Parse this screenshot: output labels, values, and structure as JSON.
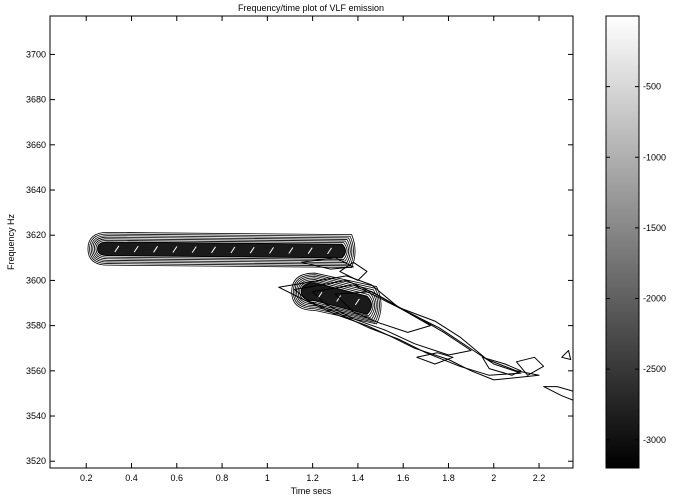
{
  "chart_data": {
    "type": "contour",
    "title": "Frequency/time plot of VLF emission",
    "xlabel": "Time secs",
    "ylabel": "Frequency Hz",
    "xlim": [
      0.04,
      2.35
    ],
    "ylim": [
      3517,
      3717
    ],
    "x_ticks": [
      0.2,
      0.4,
      0.6,
      0.8,
      1,
      1.2,
      1.4,
      1.6,
      1.8,
      2,
      2.2
    ],
    "y_ticks": [
      3520,
      3540,
      3560,
      3580,
      3600,
      3620,
      3640,
      3660,
      3680,
      3700
    ],
    "x_tick_labels": [
      "0.2",
      "0.4",
      "0.6",
      "0.8",
      "1",
      "1.2",
      "1.4",
      "1.6",
      "1.8",
      "2",
      "2.2"
    ],
    "y_tick_labels": [
      "3520",
      "3540",
      "3560",
      "3580",
      "3600",
      "3620",
      "3640",
      "3660",
      "3680",
      "3700"
    ],
    "grid": false,
    "colorbar": {
      "colormap": "gray",
      "range": [
        -3200,
        0
      ],
      "ticks": [
        -500,
        -1000,
        -1500,
        -2000,
        -2500,
        -3000
      ],
      "tick_labels": [
        "-500",
        "-1000",
        "-1500",
        "-2000",
        "-2500",
        "-3000"
      ]
    },
    "features": [
      {
        "name": "upper-emission-band",
        "kind": "dense-band",
        "x": [
          0.25,
          1.36
        ],
        "y_start": 3614,
        "y_end": 3613,
        "half_width_hz": 3,
        "levels": 6
      },
      {
        "name": "lower-emission-band",
        "kind": "dense-band",
        "x": [
          1.15,
          1.48
        ],
        "y_start": 3595,
        "y_end": 3589,
        "half_width_hz": 4,
        "levels": 6
      },
      {
        "name": "descending-emission-tail",
        "kind": "contour-lines",
        "polygons": [
          [
            [
              1.05,
              3597
            ],
            [
              1.35,
              3602
            ],
            [
              1.46,
              3598
            ],
            [
              1.58,
              3588
            ],
            [
              1.74,
              3582
            ],
            [
              1.85,
              3575
            ],
            [
              1.97,
              3565
            ],
            [
              2.1,
              3560
            ],
            [
              2.2,
              3558
            ],
            [
              2.0,
              3556
            ],
            [
              1.9,
              3560
            ],
            [
              1.8,
              3565
            ],
            [
              1.65,
              3570
            ],
            [
              1.55,
              3575
            ],
            [
              1.44,
              3580
            ],
            [
              1.3,
              3585
            ],
            [
              1.15,
              3592
            ]
          ],
          [
            [
              1.12,
              3596
            ],
            [
              1.35,
              3600
            ],
            [
              1.48,
              3594
            ],
            [
              1.62,
              3586
            ],
            [
              1.76,
              3579
            ],
            [
              1.88,
              3571
            ],
            [
              2.0,
              3563
            ],
            [
              2.12,
              3559
            ],
            [
              1.98,
              3558
            ],
            [
              1.85,
              3562
            ],
            [
              1.7,
              3568
            ],
            [
              1.58,
              3574
            ],
            [
              1.45,
              3579
            ],
            [
              1.3,
              3586
            ],
            [
              1.18,
              3591
            ]
          ],
          [
            [
              1.2,
              3595
            ],
            [
              1.38,
              3598
            ],
            [
              1.52,
              3591
            ],
            [
              1.66,
              3584
            ],
            [
              1.78,
              3577
            ],
            [
              1.9,
              3569
            ],
            [
              1.8,
              3567
            ],
            [
              1.65,
              3572
            ],
            [
              1.52,
              3578
            ],
            [
              1.38,
              3583
            ],
            [
              1.25,
              3590
            ]
          ],
          [
            [
              1.3,
              3594
            ],
            [
              1.46,
              3595
            ],
            [
              1.58,
              3588
            ],
            [
              1.72,
              3580
            ],
            [
              1.62,
              3577
            ],
            [
              1.5,
              3581
            ],
            [
              1.38,
              3586
            ]
          ],
          [
            [
              1.32,
              3604
            ],
            [
              1.38,
              3608
            ],
            [
              1.44,
              3604
            ],
            [
              1.4,
              3600
            ]
          ],
          [
            [
              1.15,
              3608
            ],
            [
              1.3,
              3610
            ],
            [
              1.38,
              3606
            ],
            [
              1.28,
              3605
            ]
          ],
          [
            [
              1.95,
              3566
            ],
            [
              2.05,
              3563
            ],
            [
              2.12,
              3560
            ],
            [
              2.08,
              3558
            ],
            [
              1.98,
              3561
            ]
          ],
          [
            [
              2.1,
              3564
            ],
            [
              2.18,
              3566
            ],
            [
              2.22,
              3562
            ],
            [
              2.15,
              3558
            ]
          ],
          [
            [
              1.66,
              3566
            ],
            [
              1.75,
              3568
            ],
            [
              1.82,
              3566
            ],
            [
              1.74,
              3563
            ]
          ],
          [
            [
              2.22,
              3553
            ],
            [
              2.3,
              3549
            ],
            [
              2.35,
              3547
            ],
            [
              2.35,
              3551
            ],
            [
              2.28,
              3553
            ]
          ],
          [
            [
              2.3,
              3566
            ],
            [
              2.33,
              3569
            ],
            [
              2.34,
              3565
            ]
          ]
        ]
      }
    ]
  }
}
